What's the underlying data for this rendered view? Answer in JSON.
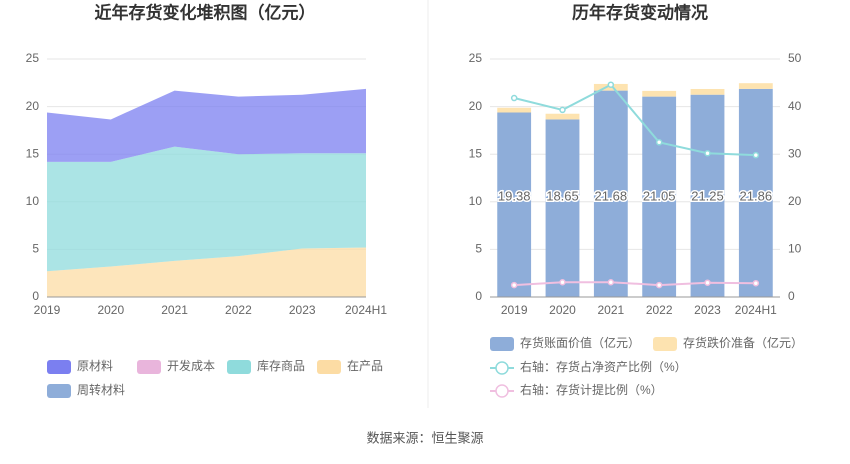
{
  "chart_data": [
    {
      "type": "stacked_area",
      "title": "近年存货变化堆积图（亿元）",
      "categories": [
        "2019",
        "2020",
        "2021",
        "2022",
        "2023",
        "2024H1"
      ],
      "series": [
        {
          "name": "原材料",
          "color": "#7b7ff0",
          "values": [
            5.18,
            4.45,
            5.88,
            6.05,
            6.15,
            6.76
          ]
        },
        {
          "name": "开发成本",
          "color": "#e9b5dc",
          "values": [
            0,
            0,
            0,
            0,
            0,
            0
          ]
        },
        {
          "name": "库存商品",
          "color": "#8fdbdc",
          "values": [
            11.5,
            11.0,
            12.0,
            10.7,
            10.0,
            9.9
          ]
        },
        {
          "name": "在产品",
          "color": "#fcdca4",
          "values": [
            2.7,
            3.2,
            3.8,
            4.3,
            5.1,
            5.2
          ]
        },
        {
          "name": "周转材料",
          "color": "#8eadd9",
          "values": [
            0,
            0,
            0,
            0,
            0,
            0
          ]
        }
      ],
      "ylim": [
        0,
        25
      ],
      "yticks": [
        0,
        5,
        10,
        15,
        20,
        25
      ],
      "grid": true
    },
    {
      "type": "bar_line",
      "title": "历年存货变动情况",
      "categories": [
        "2019",
        "2020",
        "2021",
        "2022",
        "2023",
        "2024H1"
      ],
      "series": [
        {
          "name": "存货账面价值（亿元）",
          "color": "#8eadd9",
          "values": [
            19.38,
            18.65,
            21.68,
            21.05,
            21.25,
            21.86
          ]
        },
        {
          "name": "存货跌价准备（亿元）",
          "color": "#fde3b0",
          "values": [
            0.5,
            0.6,
            0.7,
            0.6,
            0.6,
            0.6
          ]
        },
        {
          "name": "右轴：存货占净资产比例（%）",
          "color": "#8fdbdc",
          "axis": "y2",
          "values": [
            41.8,
            39.3,
            44.6,
            32.5,
            30.2,
            29.8
          ]
        },
        {
          "name": "右轴：存货计提比例（%）",
          "color": "#f0bfe0",
          "axis": "y2",
          "values": [
            2.5,
            3.1,
            3.1,
            2.5,
            3.0,
            2.9
          ]
        }
      ],
      "ylim": [
        0,
        25
      ],
      "yticks": [
        0,
        5,
        10,
        15,
        20,
        25
      ],
      "y2lim": [
        0,
        50
      ],
      "y2ticks": [
        0,
        10,
        20,
        30,
        40,
        50
      ],
      "grid": true
    }
  ],
  "source": "数据来源：恒生聚源"
}
